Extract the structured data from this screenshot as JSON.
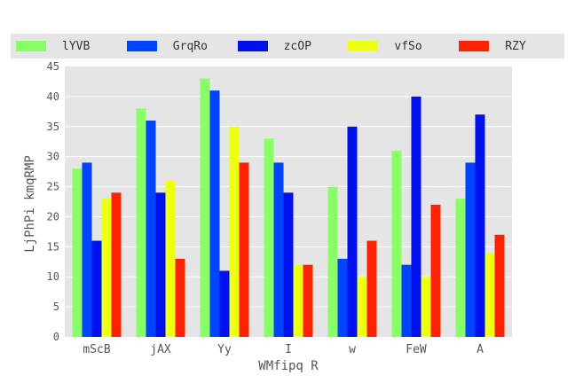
{
  "chart_data": {
    "type": "bar",
    "title": "",
    "xlabel": "WMfipq R",
    "ylabel": "LjPhPi kmqRMP",
    "categories": [
      "mScB",
      "jAX",
      "Yy",
      "I",
      "w",
      "FeW",
      "A"
    ],
    "ylim": [
      0,
      45
    ],
    "yticks": [
      0,
      5,
      10,
      15,
      20,
      25,
      30,
      35,
      40,
      45
    ],
    "grid": true,
    "legend_position": "top",
    "series": [
      {
        "name": "lYVB",
        "color": "#88ff66",
        "values": [
          28,
          38,
          43,
          33,
          25,
          31,
          23
        ]
      },
      {
        "name": "GrqRo",
        "color": "#0044ff",
        "values": [
          29,
          36,
          41,
          29,
          13,
          12,
          29
        ]
      },
      {
        "name": "zcOP",
        "color": "#0011ee",
        "values": [
          16,
          24,
          11,
          24,
          35,
          40,
          37
        ]
      },
      {
        "name": "vfSo",
        "color": "#eeff11",
        "values": [
          23,
          26,
          35,
          12,
          10,
          10,
          14
        ]
      },
      {
        "name": "RZY",
        "color": "#ff2200",
        "values": [
          24,
          13,
          29,
          12,
          16,
          22,
          17
        ]
      }
    ]
  }
}
